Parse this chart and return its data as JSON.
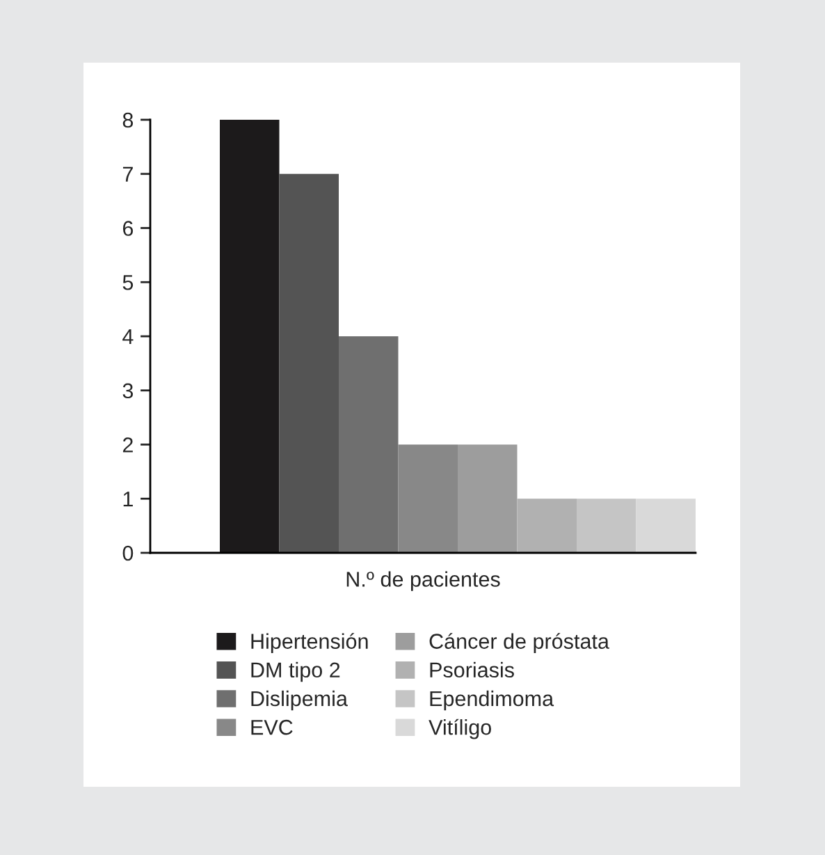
{
  "chart_data": {
    "type": "bar",
    "xlabel": "N.º de pacientes",
    "categories": [
      null
    ],
    "series": [
      {
        "name": "Hipertensión",
        "color": "#1c1a1b",
        "values": [
          8
        ]
      },
      {
        "name": "DM tipo 2",
        "color": "#545454",
        "values": [
          7
        ]
      },
      {
        "name": "Dislipemia",
        "color": "#6f6f6f",
        "values": [
          4
        ]
      },
      {
        "name": "EVC",
        "color": "#888888",
        "values": [
          2
        ]
      },
      {
        "name": "Cáncer de próstata",
        "color": "#9d9d9d",
        "values": [
          2
        ]
      },
      {
        "name": "Psoriasis",
        "color": "#b1b1b1",
        "values": [
          1
        ]
      },
      {
        "name": "Ependimoma",
        "color": "#c5c5c5",
        "values": [
          1
        ]
      },
      {
        "name": "Vitíligo",
        "color": "#d9d9d9",
        "values": [
          1
        ]
      }
    ],
    "ylim": [
      0,
      8
    ],
    "yticks": [
      0,
      1,
      2,
      3,
      4,
      5,
      6,
      7,
      8
    ],
    "legend": "bottom"
  }
}
